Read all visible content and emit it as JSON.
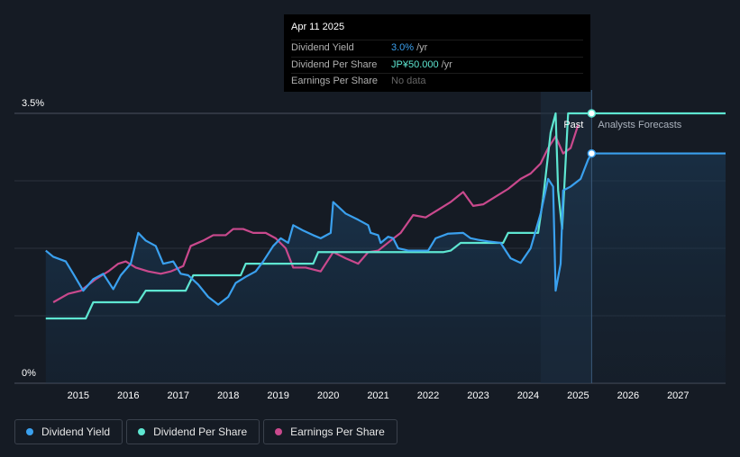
{
  "tooltip": {
    "date": "Apr 11 2025",
    "rows": [
      {
        "label": "Dividend Yield",
        "value": "3.0%",
        "unit": "/yr"
      },
      {
        "label": "Dividend Per Share",
        "value": "JP¥50.000",
        "unit": "/yr"
      },
      {
        "label": "Earnings Per Share",
        "value": "No data",
        "unit": ""
      }
    ]
  },
  "legend": [
    {
      "label": "Dividend Yield",
      "color": "#3aa0ee"
    },
    {
      "label": "Dividend Per Share",
      "color": "#5ee6d1"
    },
    {
      "label": "Earnings Per Share",
      "color": "#c9498d"
    }
  ],
  "chart_data": {
    "type": "line",
    "y_axis_labels": [
      "3.5%",
      "0%"
    ],
    "ylim": [
      0,
      3.5
    ],
    "xlim": [
      2014.3,
      2027.95
    ],
    "x_ticks": [
      "2015",
      "2016",
      "2017",
      "2018",
      "2019",
      "2020",
      "2021",
      "2022",
      "2023",
      "2024",
      "2025",
      "2026",
      "2027"
    ],
    "annotations": {
      "past": "Past",
      "forecast": "Analysts Forecasts",
      "divider_x": 2025.27,
      "forecast_start_x": 2024.25
    },
    "grid": true,
    "colors": {
      "yield": "#3aa0ee",
      "dps": "#5ee6d1",
      "eps": "#c9498d"
    },
    "series": [
      {
        "name": "Dividend Yield",
        "key": "yield",
        "points": [
          [
            2014.35,
            1.72
          ],
          [
            2014.5,
            1.64
          ],
          [
            2014.75,
            1.58
          ],
          [
            2014.9,
            1.42
          ],
          [
            2015.1,
            1.2
          ],
          [
            2015.3,
            1.35
          ],
          [
            2015.5,
            1.42
          ],
          [
            2015.7,
            1.22
          ],
          [
            2015.85,
            1.4
          ],
          [
            2016.05,
            1.55
          ],
          [
            2016.2,
            1.95
          ],
          [
            2016.35,
            1.85
          ],
          [
            2016.55,
            1.78
          ],
          [
            2016.7,
            1.55
          ],
          [
            2016.9,
            1.58
          ],
          [
            2017.05,
            1.42
          ],
          [
            2017.2,
            1.4
          ],
          [
            2017.4,
            1.28
          ],
          [
            2017.6,
            1.12
          ],
          [
            2017.8,
            1.02
          ],
          [
            2018.0,
            1.12
          ],
          [
            2018.15,
            1.3
          ],
          [
            2018.35,
            1.38
          ],
          [
            2018.55,
            1.45
          ],
          [
            2018.7,
            1.58
          ],
          [
            2018.9,
            1.78
          ],
          [
            2019.05,
            1.88
          ],
          [
            2019.2,
            1.82
          ],
          [
            2019.3,
            2.05
          ],
          [
            2019.5,
            1.98
          ],
          [
            2019.7,
            1.92
          ],
          [
            2019.85,
            1.88
          ],
          [
            2020.05,
            1.95
          ],
          [
            2020.1,
            2.35
          ],
          [
            2020.35,
            2.2
          ],
          [
            2020.6,
            2.12
          ],
          [
            2020.8,
            2.05
          ],
          [
            2020.85,
            1.95
          ],
          [
            2021.0,
            1.92
          ],
          [
            2021.05,
            1.82
          ],
          [
            2021.2,
            1.9
          ],
          [
            2021.3,
            1.88
          ],
          [
            2021.4,
            1.75
          ],
          [
            2021.6,
            1.72
          ],
          [
            2021.8,
            1.72
          ],
          [
            2022.0,
            1.72
          ],
          [
            2022.15,
            1.88
          ],
          [
            2022.4,
            1.94
          ],
          [
            2022.7,
            1.95
          ],
          [
            2022.85,
            1.88
          ],
          [
            2023.0,
            1.86
          ],
          [
            2023.2,
            1.84
          ],
          [
            2023.45,
            1.82
          ],
          [
            2023.65,
            1.62
          ],
          [
            2023.85,
            1.56
          ],
          [
            2024.05,
            1.75
          ],
          [
            2024.25,
            2.2
          ],
          [
            2024.4,
            2.65
          ],
          [
            2024.5,
            2.55
          ],
          [
            2024.55,
            1.2
          ],
          [
            2024.65,
            1.55
          ],
          [
            2024.7,
            2.5
          ],
          [
            2024.85,
            2.55
          ],
          [
            2025.05,
            2.65
          ],
          [
            2025.2,
            2.9
          ],
          [
            2025.27,
            2.98
          ],
          [
            2027.95,
            2.98
          ]
        ]
      },
      {
        "name": "Dividend Per Share",
        "key": "dps",
        "points": [
          [
            2014.35,
            0.84
          ],
          [
            2015.15,
            0.84
          ],
          [
            2015.3,
            1.05
          ],
          [
            2016.2,
            1.05
          ],
          [
            2016.35,
            1.2
          ],
          [
            2017.15,
            1.2
          ],
          [
            2017.3,
            1.4
          ],
          [
            2018.25,
            1.4
          ],
          [
            2018.35,
            1.55
          ],
          [
            2019.7,
            1.55
          ],
          [
            2019.8,
            1.7
          ],
          [
            2021.0,
            1.7
          ],
          [
            2021.1,
            1.7
          ],
          [
            2022.3,
            1.7
          ],
          [
            2022.45,
            1.72
          ],
          [
            2022.65,
            1.82
          ],
          [
            2023.5,
            1.82
          ],
          [
            2023.6,
            1.95
          ],
          [
            2024.2,
            1.95
          ],
          [
            2024.3,
            2.4
          ],
          [
            2024.45,
            3.25
          ],
          [
            2024.55,
            3.5
          ],
          [
            2024.6,
            2.5
          ],
          [
            2024.68,
            2.0
          ],
          [
            2024.72,
            2.5
          ],
          [
            2024.8,
            3.5
          ],
          [
            2025.27,
            3.5
          ],
          [
            2027.95,
            3.5
          ]
        ]
      },
      {
        "name": "Earnings Per Share",
        "key": "eps",
        "points": [
          [
            2014.5,
            1.05
          ],
          [
            2014.8,
            1.16
          ],
          [
            2015.05,
            1.2
          ],
          [
            2015.35,
            1.35
          ],
          [
            2015.6,
            1.45
          ],
          [
            2015.8,
            1.55
          ],
          [
            2015.95,
            1.58
          ],
          [
            2016.15,
            1.5
          ],
          [
            2016.4,
            1.45
          ],
          [
            2016.65,
            1.42
          ],
          [
            2016.85,
            1.45
          ],
          [
            2017.1,
            1.52
          ],
          [
            2017.25,
            1.78
          ],
          [
            2017.5,
            1.85
          ],
          [
            2017.7,
            1.92
          ],
          [
            2017.95,
            1.92
          ],
          [
            2018.1,
            2.0
          ],
          [
            2018.3,
            2.0
          ],
          [
            2018.5,
            1.95
          ],
          [
            2018.75,
            1.95
          ],
          [
            2018.95,
            1.88
          ],
          [
            2019.15,
            1.75
          ],
          [
            2019.3,
            1.5
          ],
          [
            2019.55,
            1.5
          ],
          [
            2019.85,
            1.45
          ],
          [
            2020.1,
            1.7
          ],
          [
            2020.35,
            1.62
          ],
          [
            2020.6,
            1.55
          ],
          [
            2020.8,
            1.7
          ],
          [
            2021.0,
            1.72
          ],
          [
            2021.25,
            1.85
          ],
          [
            2021.45,
            1.95
          ],
          [
            2021.7,
            2.18
          ],
          [
            2021.95,
            2.15
          ],
          [
            2022.2,
            2.25
          ],
          [
            2022.45,
            2.35
          ],
          [
            2022.7,
            2.48
          ],
          [
            2022.9,
            2.3
          ],
          [
            2023.1,
            2.32
          ],
          [
            2023.35,
            2.42
          ],
          [
            2023.6,
            2.52
          ],
          [
            2023.85,
            2.65
          ],
          [
            2024.05,
            2.72
          ],
          [
            2024.25,
            2.85
          ],
          [
            2024.4,
            3.05
          ],
          [
            2024.55,
            3.2
          ],
          [
            2024.7,
            2.98
          ],
          [
            2024.85,
            3.05
          ],
          [
            2025.0,
            3.35
          ]
        ]
      }
    ]
  }
}
